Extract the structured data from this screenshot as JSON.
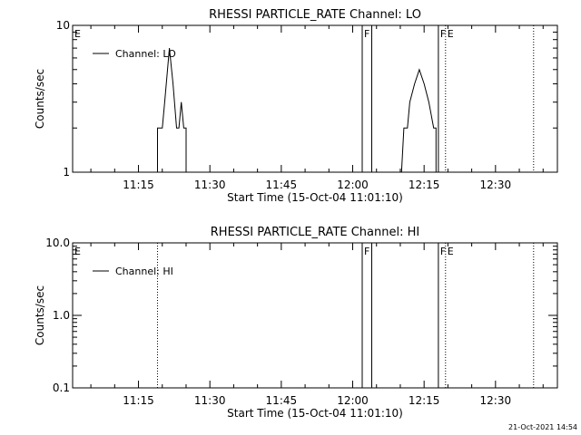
{
  "chart_data": [
    {
      "type": "line",
      "title": "RHESSI PARTICLE_RATE Channel: LO",
      "xlabel": "Start Time (15-Oct-04 11:01:10)",
      "ylabel": "Counts/sec",
      "yscale": "log",
      "ylim": [
        1,
        10
      ],
      "y_tick_labels": [
        "1",
        "10"
      ],
      "x_ticks": [
        "11:15",
        "11:30",
        "11:45",
        "12:00",
        "12:15",
        "12:30"
      ],
      "legend": "top-left",
      "series": [
        {
          "name": "Channel: LO",
          "segments": [
            [
              [
                "11:19:00",
                1
              ],
              [
                "11:19:00",
                2
              ],
              [
                "11:20:00",
                2
              ],
              [
                "11:20:30",
                3
              ],
              [
                "11:21:30",
                7
              ],
              [
                "11:22:15",
                4
              ],
              [
                "11:23:00",
                2
              ],
              [
                "11:23:30",
                2
              ],
              [
                "11:24:00",
                3
              ],
              [
                "11:24:30",
                2
              ],
              [
                "11:25:00",
                2
              ],
              [
                "11:25:00",
                1
              ]
            ],
            [
              [
                "12:10:15",
                1
              ],
              [
                "12:10:45",
                2
              ],
              [
                "12:11:30",
                2
              ],
              [
                "12:12:00",
                3
              ],
              [
                "12:13:00",
                4
              ],
              [
                "12:14:00",
                5
              ],
              [
                "12:15:00",
                4
              ],
              [
                "12:16:00",
                3
              ],
              [
                "12:17:00",
                2
              ],
              [
                "12:17:30",
                2
              ],
              [
                "12:17:30",
                1
              ]
            ]
          ]
        }
      ],
      "flags": [
        {
          "time": "11:01:10",
          "label": "E",
          "style": "solid"
        },
        {
          "time": "12:02:00",
          "label": "F",
          "style": "solid"
        },
        {
          "time": "12:04:00",
          "label": "",
          "style": "solid"
        },
        {
          "time": "12:18:00",
          "label": "F",
          "style": "solid"
        },
        {
          "time": "12:19:30",
          "label": "E",
          "style": "dotted"
        },
        {
          "time": "12:38:00",
          "label": "",
          "style": "dotted"
        }
      ]
    },
    {
      "type": "line",
      "title": "RHESSI PARTICLE_RATE Channel: HI",
      "xlabel": "Start Time (15-Oct-04 11:01:10)",
      "ylabel": "Counts/sec",
      "yscale": "log",
      "ylim": [
        0.1,
        10
      ],
      "y_tick_labels": [
        "0.1",
        "1.0",
        "10.0"
      ],
      "x_ticks": [
        "11:15",
        "11:30",
        "11:45",
        "12:00",
        "12:15",
        "12:30"
      ],
      "legend": "top-left",
      "series": [
        {
          "name": "Channel: HI",
          "segments": []
        }
      ],
      "flags": [
        {
          "time": "11:01:10",
          "label": "E",
          "style": "solid"
        },
        {
          "time": "11:19:00",
          "label": "",
          "style": "dotted"
        },
        {
          "time": "12:02:00",
          "label": "F",
          "style": "solid"
        },
        {
          "time": "12:04:00",
          "label": "",
          "style": "solid"
        },
        {
          "time": "12:18:00",
          "label": "F",
          "style": "solid"
        },
        {
          "time": "12:19:30",
          "label": "E",
          "style": "dotted"
        },
        {
          "time": "12:38:00",
          "label": "",
          "style": "dotted"
        }
      ]
    }
  ],
  "timestamp": "21-Oct-2021 14:54"
}
